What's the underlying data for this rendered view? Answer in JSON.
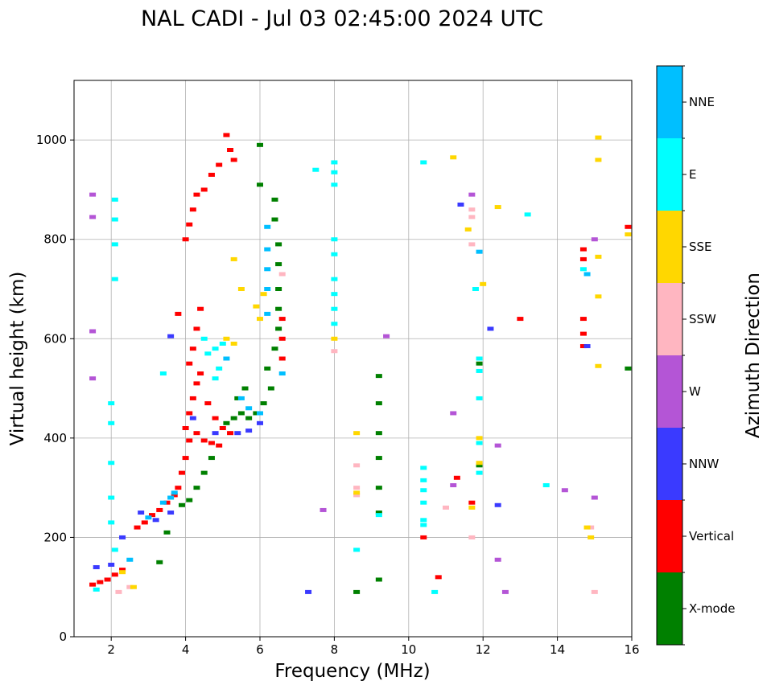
{
  "chart_data": {
    "type": "scatter",
    "title": "NAL CADI - Jul 03 02:45:00 2024 UTC",
    "xlabel": "Frequency (MHz)",
    "ylabel": "Virtual height (km)",
    "xlim": [
      1,
      16
    ],
    "ylim": [
      0,
      1120
    ],
    "xticks": [
      "2",
      "4",
      "6",
      "8",
      "10",
      "12",
      "14",
      "16"
    ],
    "yticks": [
      "0",
      "200",
      "400",
      "600",
      "800",
      "1000"
    ],
    "grid": true,
    "colorbar": {
      "label": "Azimuth Direction",
      "categories": [
        {
          "name": "X-mode",
          "color": "#008000"
        },
        {
          "name": "Vertical",
          "color": "#ff0000"
        },
        {
          "name": "NNW",
          "color": "#3a3aff"
        },
        {
          "name": "W",
          "color": "#b455d6"
        },
        {
          "name": "SSW",
          "color": "#ffb6c1"
        },
        {
          "name": "SSE",
          "color": "#ffd700"
        },
        {
          "name": "E",
          "color": "#00ffff"
        },
        {
          "name": "NNE",
          "color": "#00bfff"
        }
      ]
    },
    "series": [
      {
        "name": "Vertical",
        "points": [
          [
            1.5,
            105
          ],
          [
            1.7,
            110
          ],
          [
            1.9,
            115
          ],
          [
            2.1,
            125
          ],
          [
            2.3,
            135
          ],
          [
            2.7,
            220
          ],
          [
            2.9,
            230
          ],
          [
            3.1,
            245
          ],
          [
            3.3,
            255
          ],
          [
            3.5,
            270
          ],
          [
            3.7,
            285
          ],
          [
            3.8,
            300
          ],
          [
            3.9,
            330
          ],
          [
            4.0,
            360
          ],
          [
            4.1,
            395
          ],
          [
            4.3,
            410
          ],
          [
            4.5,
            395
          ],
          [
            4.7,
            390
          ],
          [
            4.9,
            385
          ],
          [
            4.0,
            420
          ],
          [
            4.1,
            450
          ],
          [
            4.2,
            480
          ],
          [
            4.3,
            510
          ],
          [
            4.4,
            530
          ],
          [
            4.6,
            470
          ],
          [
            4.8,
            440
          ],
          [
            5.0,
            420
          ],
          [
            5.2,
            410
          ],
          [
            4.1,
            550
          ],
          [
            4.2,
            580
          ],
          [
            4.3,
            620
          ],
          [
            4.4,
            660
          ],
          [
            3.8,
            650
          ],
          [
            4.0,
            800
          ],
          [
            4.1,
            830
          ],
          [
            4.2,
            860
          ],
          [
            4.3,
            890
          ],
          [
            4.5,
            900
          ],
          [
            4.7,
            930
          ],
          [
            4.9,
            950
          ],
          [
            5.1,
            1010
          ],
          [
            5.2,
            980
          ],
          [
            5.3,
            960
          ],
          [
            6.6,
            560
          ],
          [
            6.6,
            600
          ],
          [
            6.6,
            640
          ],
          [
            14.7,
            780
          ],
          [
            14.7,
            760
          ],
          [
            14.7,
            640
          ],
          [
            14.7,
            610
          ],
          [
            14.7,
            585
          ],
          [
            15.9,
            825
          ],
          [
            13.0,
            640
          ],
          [
            11.3,
            320
          ],
          [
            10.8,
            120
          ],
          [
            11.7,
            270
          ],
          [
            10.4,
            200
          ]
        ]
      },
      {
        "name": "X-mode",
        "points": [
          [
            3.9,
            265
          ],
          [
            4.1,
            275
          ],
          [
            4.3,
            300
          ],
          [
            4.5,
            330
          ],
          [
            4.7,
            360
          ],
          [
            5.1,
            430
          ],
          [
            5.3,
            440
          ],
          [
            5.5,
            450
          ],
          [
            5.7,
            440
          ],
          [
            5.9,
            450
          ],
          [
            6.1,
            470
          ],
          [
            6.3,
            500
          ],
          [
            5.4,
            480
          ],
          [
            5.6,
            500
          ],
          [
            6.2,
            540
          ],
          [
            6.4,
            580
          ],
          [
            6.5,
            620
          ],
          [
            6.5,
            660
          ],
          [
            6.5,
            700
          ],
          [
            6.5,
            750
          ],
          [
            6.5,
            790
          ],
          [
            6.4,
            840
          ],
          [
            6.4,
            880
          ],
          [
            6.0,
            910
          ],
          [
            6.0,
            990
          ],
          [
            9.2,
            525
          ],
          [
            9.2,
            470
          ],
          [
            9.2,
            410
          ],
          [
            9.2,
            360
          ],
          [
            9.2,
            300
          ],
          [
            9.2,
            250
          ],
          [
            9.2,
            115
          ],
          [
            8.6,
            90
          ],
          [
            11.9,
            550
          ],
          [
            11.9,
            345
          ],
          [
            15.9,
            540
          ],
          [
            3.5,
            210
          ],
          [
            3.3,
            150
          ]
        ]
      },
      {
        "name": "NNW",
        "points": [
          [
            1.6,
            140
          ],
          [
            2.0,
            145
          ],
          [
            2.3,
            200
          ],
          [
            2.8,
            250
          ],
          [
            3.2,
            235
          ],
          [
            3.6,
            250
          ],
          [
            4.2,
            440
          ],
          [
            4.8,
            410
          ],
          [
            5.4,
            410
          ],
          [
            5.7,
            415
          ],
          [
            6.0,
            430
          ],
          [
            7.3,
            90
          ],
          [
            11.4,
            870
          ],
          [
            12.2,
            620
          ],
          [
            12.4,
            265
          ],
          [
            14.8,
            585
          ],
          [
            3.6,
            605
          ]
        ]
      },
      {
        "name": "W",
        "points": [
          [
            1.5,
            890
          ],
          [
            1.5,
            845
          ],
          [
            1.5,
            615
          ],
          [
            1.5,
            520
          ],
          [
            7.7,
            255
          ],
          [
            9.4,
            605
          ],
          [
            11.2,
            450
          ],
          [
            11.7,
            890
          ],
          [
            12.4,
            385
          ],
          [
            12.4,
            155
          ],
          [
            12.6,
            90
          ],
          [
            14.2,
            295
          ],
          [
            15.0,
            800
          ],
          [
            15.0,
            280
          ],
          [
            11.2,
            305
          ]
        ]
      },
      {
        "name": "SSW",
        "points": [
          [
            2.2,
            90
          ],
          [
            2.5,
            100
          ],
          [
            8.6,
            345
          ],
          [
            8.6,
            300
          ],
          [
            8.6,
            285
          ],
          [
            8.0,
            575
          ],
          [
            11.7,
            790
          ],
          [
            11.7,
            845
          ],
          [
            11.7,
            860
          ],
          [
            11.0,
            260
          ],
          [
            14.9,
            220
          ],
          [
            15.0,
            90
          ],
          [
            11.7,
            200
          ],
          [
            6.6,
            730
          ]
        ]
      },
      {
        "name": "SSE",
        "points": [
          [
            2.6,
            100
          ],
          [
            2.3,
            130
          ],
          [
            5.3,
            760
          ],
          [
            5.5,
            700
          ],
          [
            5.9,
            665
          ],
          [
            6.1,
            690
          ],
          [
            6.0,
            640
          ],
          [
            5.1,
            600
          ],
          [
            5.3,
            590
          ],
          [
            8.0,
            600
          ],
          [
            8.6,
            410
          ],
          [
            8.6,
            290
          ],
          [
            11.2,
            965
          ],
          [
            11.6,
            820
          ],
          [
            12.0,
            710
          ],
          [
            12.4,
            865
          ],
          [
            11.9,
            400
          ],
          [
            11.9,
            350
          ],
          [
            11.7,
            260
          ],
          [
            14.8,
            220
          ],
          [
            14.9,
            200
          ],
          [
            15.1,
            1005
          ],
          [
            15.1,
            960
          ],
          [
            15.1,
            765
          ],
          [
            15.1,
            685
          ],
          [
            15.1,
            545
          ],
          [
            15.9,
            810
          ]
        ]
      },
      {
        "name": "E",
        "points": [
          [
            1.6,
            95
          ],
          [
            2.1,
            880
          ],
          [
            2.1,
            840
          ],
          [
            2.1,
            790
          ],
          [
            2.1,
            720
          ],
          [
            2.0,
            470
          ],
          [
            2.0,
            430
          ],
          [
            2.0,
            350
          ],
          [
            2.0,
            280
          ],
          [
            2.0,
            230
          ],
          [
            2.1,
            175
          ],
          [
            4.6,
            570
          ],
          [
            4.8,
            580
          ],
          [
            5.0,
            590
          ],
          [
            4.9,
            540
          ],
          [
            4.8,
            520
          ],
          [
            3.4,
            530
          ],
          [
            4.5,
            600
          ],
          [
            7.5,
            940
          ],
          [
            8.0,
            955
          ],
          [
            8.0,
            935
          ],
          [
            8.0,
            910
          ],
          [
            8.0,
            800
          ],
          [
            8.0,
            770
          ],
          [
            8.0,
            720
          ],
          [
            8.0,
            690
          ],
          [
            8.0,
            660
          ],
          [
            8.0,
            630
          ],
          [
            8.6,
            175
          ],
          [
            9.2,
            245
          ],
          [
            10.4,
            340
          ],
          [
            10.4,
            315
          ],
          [
            10.4,
            295
          ],
          [
            10.4,
            270
          ],
          [
            10.4,
            235
          ],
          [
            10.4,
            225
          ],
          [
            10.7,
            90
          ],
          [
            10.4,
            955
          ],
          [
            11.8,
            700
          ],
          [
            11.9,
            560
          ],
          [
            11.9,
            535
          ],
          [
            11.9,
            480
          ],
          [
            11.9,
            390
          ],
          [
            11.9,
            330
          ],
          [
            13.2,
            850
          ],
          [
            13.7,
            305
          ],
          [
            14.7,
            740
          ]
        ]
      },
      {
        "name": "NNE",
        "points": [
          [
            2.5,
            155
          ],
          [
            3.0,
            240
          ],
          [
            3.4,
            270
          ],
          [
            3.6,
            280
          ],
          [
            3.7,
            290
          ],
          [
            6.2,
            650
          ],
          [
            6.2,
            700
          ],
          [
            6.2,
            740
          ],
          [
            6.2,
            780
          ],
          [
            6.2,
            825
          ],
          [
            5.1,
            560
          ],
          [
            5.5,
            480
          ],
          [
            5.7,
            460
          ],
          [
            6.0,
            450
          ],
          [
            6.6,
            530
          ],
          [
            11.9,
            775
          ],
          [
            14.8,
            730
          ]
        ]
      }
    ]
  }
}
